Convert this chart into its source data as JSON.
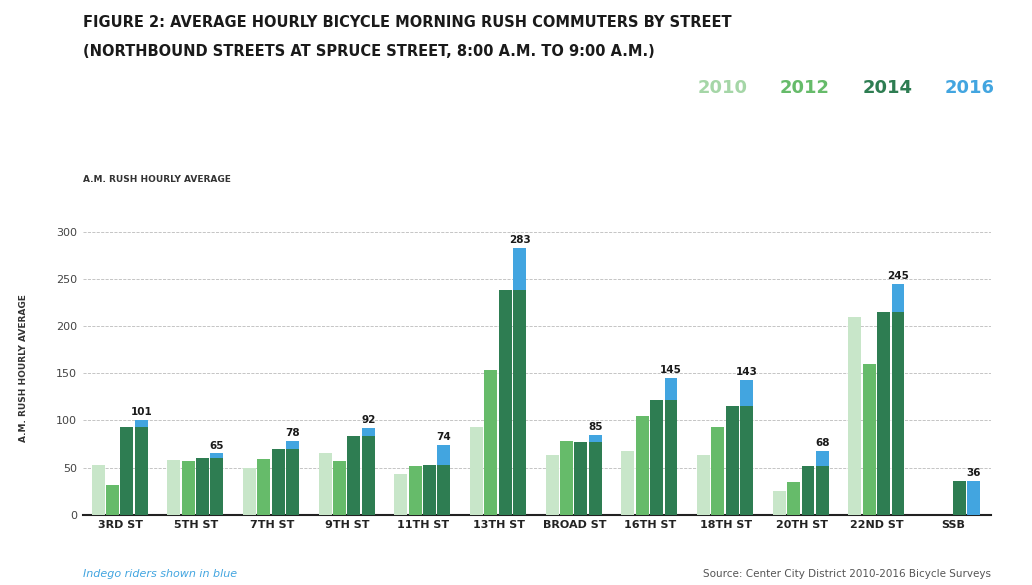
{
  "title_line1": "FIGURE 2: AVERAGE HOURLY BICYCLE MORNING RUSH COMMUTERS BY STREET",
  "title_line2": "(NORTHBOUND STREETS AT SPRUCE STREET, 8:00 A.M. TO 9:00 A.M.)",
  "ylabel": "A.M. RUSH HOURLY AVERAGE",
  "categories": [
    "3RD ST",
    "5TH ST",
    "7TH ST",
    "9TH ST",
    "11TH ST",
    "13TH ST",
    "BROAD ST",
    "16TH ST",
    "18TH ST",
    "20TH ST",
    "22ND ST",
    "SSB"
  ],
  "series": {
    "2010": [
      53,
      58,
      50,
      65,
      43,
      93,
      63,
      68,
      63,
      25,
      210,
      0
    ],
    "2012": [
      32,
      57,
      59,
      57,
      52,
      153,
      78,
      105,
      93,
      35,
      160,
      0
    ],
    "2014": [
      93,
      60,
      70,
      84,
      53,
      238,
      77,
      122,
      115,
      52,
      215,
      36
    ],
    "2016_green": [
      93,
      60,
      70,
      84,
      53,
      238,
      77,
      122,
      115,
      52,
      215,
      36
    ],
    "2016_blue": [
      101,
      65,
      78,
      92,
      74,
      283,
      85,
      145,
      143,
      68,
      245,
      36
    ]
  },
  "labels_2016": [
    "101",
    "65",
    "78",
    "92",
    "74",
    "283",
    "85",
    "145",
    "143",
    "68",
    "245",
    "36"
  ],
  "colors": {
    "2010": "#c8e6c9",
    "2012": "#66bb6a",
    "2014": "#2e7d52",
    "2016_green": "#2e7d52",
    "2016_blue": "#42a5e0"
  },
  "legend_entries": [
    "2010",
    "2012",
    "2014",
    "2016"
  ],
  "legend_colors": [
    "#c8e6c9",
    "#66bb6a",
    "#2e7d52",
    "#42a5e0"
  ],
  "legend_text_colors": [
    "#a5d6a7",
    "#66bb6a",
    "#2e7d52",
    "#42a5e0"
  ],
  "ylim": [
    0,
    310
  ],
  "yticks": [
    0,
    50,
    100,
    150,
    200,
    250,
    300
  ],
  "background_color": "#ffffff",
  "footnote": "Indego riders shown in blue",
  "source": "Source: Center City District 2010-2016 Bicycle Surveys"
}
